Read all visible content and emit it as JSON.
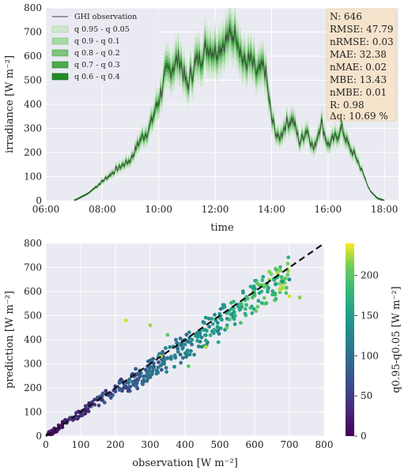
{
  "chart_data": [
    {
      "type": "line",
      "xlabel": "time",
      "ylabel": "irradiance [W m⁻²]",
      "xlim": [
        "06:00",
        "18:30"
      ],
      "ylim": [
        0,
        800
      ],
      "x_ticks": [
        "06:00",
        "08:00",
        "10:00",
        "12:00",
        "14:00",
        "16:00",
        "18:00"
      ],
      "y_ticks": [
        0,
        100,
        200,
        300,
        400,
        500,
        600,
        700,
        800
      ],
      "grid": true,
      "legend_position": "top-left",
      "legend": [
        "GHI observation",
        "q 0.95 - q 0.05",
        "q 0.9 - q 0.1",
        "q 0.8 - q 0.2",
        "q 0.7 - q 0.3",
        "q 0.6 - q 0.4"
      ],
      "colors": {
        "observation": "#444444",
        "bands": [
          "#cde8cd",
          "#a9d8a9",
          "#7cc37c",
          "#4ea84e",
          "#238b23"
        ],
        "background": "#eaeaf2",
        "stats_box": "#f5e3cc"
      },
      "stats": [
        "N: 646",
        "RMSE: 47.79",
        "nRMSE: 0.03",
        "MAE: 32.38",
        "nMAE: 0.02",
        "MBE: 13.43",
        "nMBE: 0.01",
        "R: 0.98",
        "Δq: 10.69 %"
      ],
      "series": [
        {
          "name": "GHI observation",
          "x": [
            "07:00",
            "07:30",
            "08:00",
            "08:30",
            "09:00",
            "09:20",
            "09:40",
            "10:00",
            "10:15",
            "10:30",
            "10:45",
            "11:00",
            "11:15",
            "11:30",
            "11:45",
            "12:00",
            "12:15",
            "12:30",
            "12:45",
            "13:00",
            "13:15",
            "13:30",
            "13:45",
            "14:00",
            "14:15",
            "14:30",
            "14:45",
            "15:00",
            "15:15",
            "15:30",
            "15:45",
            "16:00",
            "16:15",
            "16:30",
            "16:45",
            "17:00",
            "17:15",
            "17:30",
            "17:45",
            "18:00"
          ],
          "y": [
            0,
            30,
            80,
            130,
            170,
            250,
            300,
            420,
            520,
            560,
            590,
            470,
            560,
            600,
            640,
            620,
            650,
            680,
            700,
            570,
            580,
            520,
            560,
            340,
            250,
            320,
            340,
            240,
            300,
            210,
            330,
            230,
            260,
            300,
            220,
            180,
            110,
            40,
            10,
            0
          ]
        }
      ]
    },
    {
      "type": "scatter",
      "xlabel": "observation [W m⁻²]",
      "ylabel": "prediction [W m⁻²]",
      "colorbar_label": "q0.95-q0.05 [W m⁻²]",
      "xlim": [
        0,
        800
      ],
      "ylim": [
        0,
        800
      ],
      "x_ticks": [
        0,
        100,
        200,
        300,
        400,
        500,
        600,
        700,
        800
      ],
      "y_ticks": [
        0,
        100,
        200,
        300,
        400,
        500,
        600,
        700,
        800
      ],
      "colorbar_range": [
        0,
        240
      ],
      "colorbar_ticks": [
        0,
        50,
        100,
        150,
        200
      ],
      "colormap": "viridis",
      "reference_line": "y = x (dashed black)",
      "grid": true,
      "points_sample": [
        [
          5,
          5,
          5
        ],
        [
          20,
          20,
          10
        ],
        [
          40,
          38,
          15
        ],
        [
          60,
          55,
          20
        ],
        [
          80,
          75,
          25
        ],
        [
          100,
          95,
          30
        ],
        [
          120,
          112,
          35
        ],
        [
          140,
          130,
          40
        ],
        [
          160,
          150,
          45
        ],
        [
          180,
          170,
          50
        ],
        [
          200,
          185,
          60
        ],
        [
          220,
          195,
          70
        ],
        [
          240,
          205,
          75
        ],
        [
          260,
          215,
          85
        ],
        [
          280,
          230,
          90
        ],
        [
          300,
          245,
          95
        ],
        [
          320,
          270,
          100
        ],
        [
          340,
          300,
          110
        ],
        [
          360,
          320,
          115
        ],
        [
          380,
          350,
          120
        ],
        [
          400,
          380,
          130
        ],
        [
          420,
          400,
          140
        ],
        [
          440,
          420,
          145
        ],
        [
          460,
          440,
          150
        ],
        [
          480,
          465,
          160
        ],
        [
          500,
          490,
          170
        ],
        [
          520,
          510,
          175
        ],
        [
          540,
          530,
          180
        ],
        [
          560,
          550,
          185
        ],
        [
          580,
          570,
          190
        ],
        [
          600,
          590,
          180
        ],
        [
          620,
          600,
          170
        ],
        [
          640,
          615,
          160
        ],
        [
          660,
          630,
          150
        ],
        [
          680,
          640,
          140
        ],
        [
          700,
          650,
          120
        ],
        [
          230,
          480,
          230
        ],
        [
          300,
          460,
          220
        ],
        [
          330,
          330,
          235
        ],
        [
          350,
          420,
          200
        ],
        [
          410,
          290,
          200
        ],
        [
          460,
          370,
          225
        ],
        [
          520,
          450,
          210
        ],
        [
          560,
          470,
          190
        ],
        [
          700,
          580,
          230
        ],
        [
          730,
          575,
          215
        ]
      ]
    }
  ]
}
